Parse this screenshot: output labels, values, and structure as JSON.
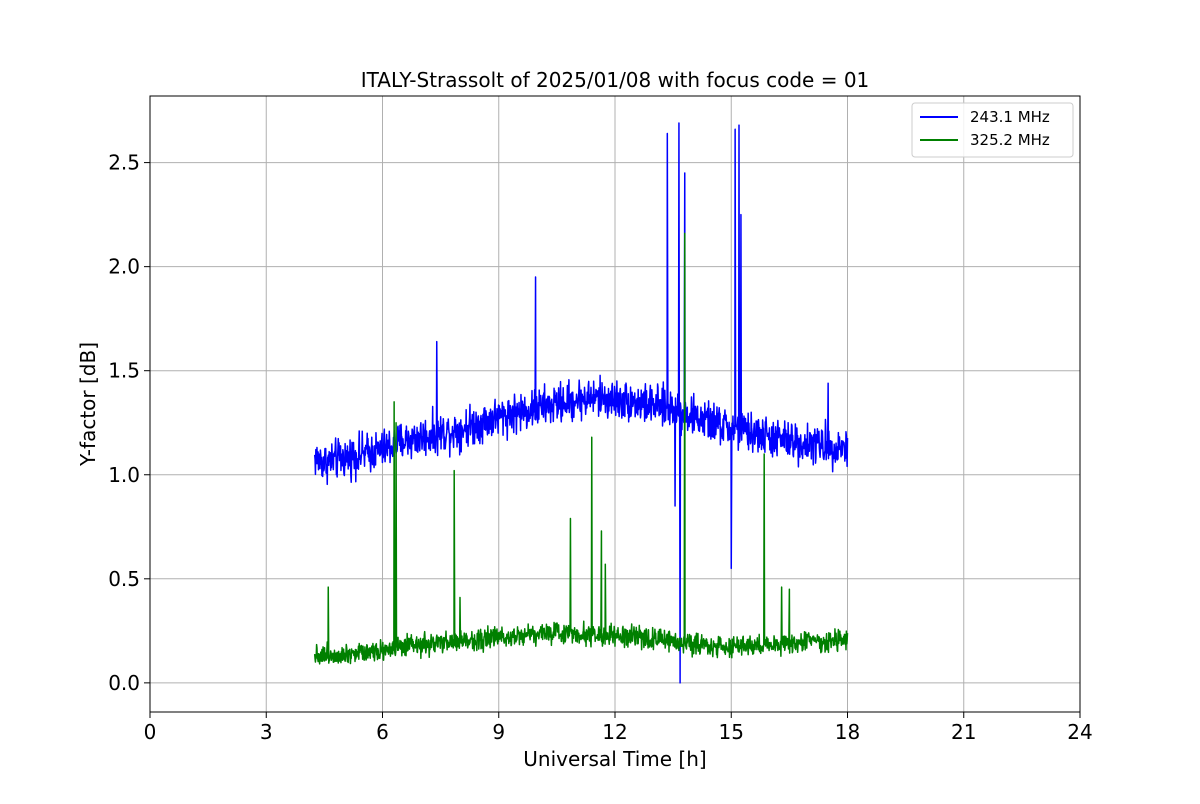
{
  "chart_data": {
    "type": "line",
    "title": "ITALY-Strassolt of 2025/01/08 with focus code = 01",
    "xlabel": "Universal Time [h]",
    "ylabel": "Y-factor [dB]",
    "xlim": [
      0,
      24
    ],
    "ylim": [
      -0.14,
      2.82
    ],
    "xticks": [
      0,
      3,
      6,
      9,
      12,
      15,
      18,
      21,
      24
    ],
    "yticks": [
      0.0,
      0.5,
      1.0,
      1.5,
      2.0,
      2.5
    ],
    "xtick_labels": [
      "0",
      "3",
      "6",
      "9",
      "12",
      "15",
      "18",
      "21",
      "24"
    ],
    "ytick_labels": [
      "0.0",
      "0.5",
      "1.0",
      "1.5",
      "2.0",
      "2.5"
    ],
    "grid": true,
    "legend_position": "top-right",
    "series": [
      {
        "name": "243.1 MHz",
        "color": "#0000ff",
        "x_range": [
          4.25,
          18.0
        ],
        "points": [
          [
            4.25,
            1.08
          ],
          [
            4.5,
            1.06
          ],
          [
            5.0,
            1.08
          ],
          [
            5.5,
            1.1
          ],
          [
            6.0,
            1.12
          ],
          [
            6.5,
            1.16
          ],
          [
            7.0,
            1.18
          ],
          [
            7.5,
            1.2
          ],
          [
            8.0,
            1.22
          ],
          [
            8.5,
            1.25
          ],
          [
            9.0,
            1.28
          ],
          [
            9.5,
            1.3
          ],
          [
            10.0,
            1.32
          ],
          [
            10.5,
            1.34
          ],
          [
            11.0,
            1.36
          ],
          [
            11.5,
            1.37
          ],
          [
            12.0,
            1.36
          ],
          [
            12.5,
            1.35
          ],
          [
            13.0,
            1.33
          ],
          [
            13.5,
            1.32
          ],
          [
            14.0,
            1.28
          ],
          [
            14.5,
            1.25
          ],
          [
            15.0,
            1.22
          ],
          [
            15.5,
            1.2
          ],
          [
            16.0,
            1.18
          ],
          [
            16.5,
            1.16
          ],
          [
            17.0,
            1.15
          ],
          [
            17.5,
            1.14
          ],
          [
            18.0,
            1.13
          ]
        ],
        "spikes": [
          [
            7.4,
            1.64
          ],
          [
            9.95,
            1.95
          ],
          [
            13.35,
            2.64
          ],
          [
            13.55,
            0.85
          ],
          [
            13.65,
            2.69
          ],
          [
            13.68,
            0.0
          ],
          [
            13.8,
            2.45
          ],
          [
            15.0,
            0.55
          ],
          [
            15.1,
            2.66
          ],
          [
            15.2,
            2.68
          ],
          [
            15.25,
            2.25
          ],
          [
            17.5,
            1.44
          ]
        ]
      },
      {
        "name": "325.2 MHz",
        "color": "#008000",
        "x_range": [
          4.25,
          18.0
        ],
        "points": [
          [
            4.25,
            0.14
          ],
          [
            4.5,
            0.13
          ],
          [
            5.0,
            0.14
          ],
          [
            5.5,
            0.15
          ],
          [
            6.0,
            0.16
          ],
          [
            6.5,
            0.17
          ],
          [
            7.0,
            0.18
          ],
          [
            7.5,
            0.19
          ],
          [
            8.0,
            0.2
          ],
          [
            8.5,
            0.21
          ],
          [
            9.0,
            0.22
          ],
          [
            9.5,
            0.23
          ],
          [
            10.0,
            0.24
          ],
          [
            10.5,
            0.24
          ],
          [
            11.0,
            0.24
          ],
          [
            11.5,
            0.23
          ],
          [
            12.0,
            0.22
          ],
          [
            12.5,
            0.22
          ],
          [
            13.0,
            0.21
          ],
          [
            13.5,
            0.2
          ],
          [
            14.0,
            0.19
          ],
          [
            14.5,
            0.18
          ],
          [
            15.0,
            0.17
          ],
          [
            15.5,
            0.18
          ],
          [
            16.0,
            0.18
          ],
          [
            16.5,
            0.19
          ],
          [
            17.0,
            0.2
          ],
          [
            17.5,
            0.2
          ],
          [
            18.0,
            0.2
          ]
        ],
        "spikes": [
          [
            4.6,
            0.46
          ],
          [
            6.3,
            1.35
          ],
          [
            6.35,
            1.25
          ],
          [
            7.85,
            1.02
          ],
          [
            8.0,
            0.41
          ],
          [
            10.85,
            0.79
          ],
          [
            11.4,
            1.18
          ],
          [
            11.65,
            0.73
          ],
          [
            11.75,
            0.57
          ],
          [
            13.8,
            2.16
          ],
          [
            15.85,
            1.1
          ],
          [
            16.3,
            0.46
          ],
          [
            16.5,
            0.45
          ]
        ]
      }
    ]
  }
}
